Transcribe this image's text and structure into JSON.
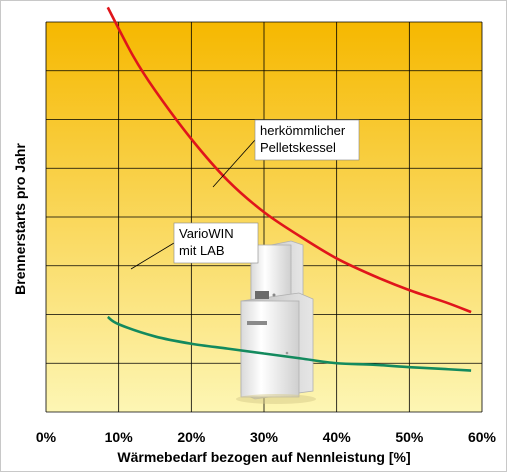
{
  "chart_data": {
    "type": "line",
    "xlabel": "Wärmebedarf bezogen auf Nennleistung [%]",
    "ylabel": "Brennerstarts pro Jahr",
    "xlim": [
      0,
      60
    ],
    "x_ticks": [
      "0%",
      "10%",
      "20%",
      "30%",
      "40%",
      "50%",
      "60%"
    ],
    "y_tick_labels_shown": false,
    "y_gridlines": 8,
    "grid": true,
    "background_gradient": {
      "top": "#f6b800",
      "bottom": "#fdf6b4"
    },
    "series": [
      {
        "name": "herkömmlicher Pelletskessel",
        "color": "#e0151b",
        "points": [
          [
            8.5,
            8.3
          ],
          [
            12,
            7.3
          ],
          [
            15,
            6.6
          ],
          [
            20,
            5.6
          ],
          [
            25,
            4.75
          ],
          [
            30,
            4.1
          ],
          [
            35,
            3.6
          ],
          [
            40,
            3.15
          ],
          [
            45,
            2.8
          ],
          [
            50,
            2.5
          ],
          [
            55,
            2.25
          ],
          [
            58.5,
            2.05
          ]
        ]
      },
      {
        "name": "VarioWIN mit LAB",
        "color": "#138a5e",
        "points": [
          [
            8.5,
            1.95
          ],
          [
            10,
            1.8
          ],
          [
            15,
            1.55
          ],
          [
            20,
            1.4
          ],
          [
            25,
            1.3
          ],
          [
            30,
            1.2
          ],
          [
            35,
            1.1
          ],
          [
            40,
            1.0
          ],
          [
            45,
            0.97
          ],
          [
            50,
            0.92
          ],
          [
            55,
            0.88
          ],
          [
            58.5,
            0.85
          ]
        ]
      }
    ],
    "annotations": [
      {
        "lines": [
          "herkömmlicher",
          "Pelletskessel"
        ],
        "series": 0
      },
      {
        "lines": [
          "VarioWIN",
          "mit LAB"
        ],
        "series": 1
      }
    ],
    "illustration": "pellet-boiler-image"
  }
}
